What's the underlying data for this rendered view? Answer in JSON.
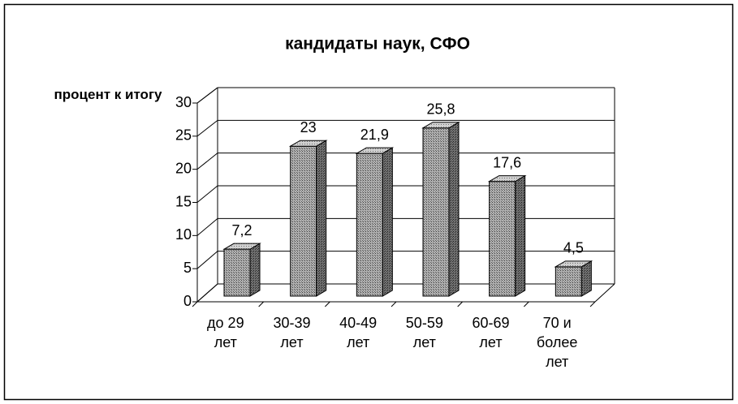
{
  "chart_data": {
    "type": "bar3d",
    "title": "кандидаты наук, СФО",
    "y_label": "процент к итогу",
    "categories": [
      "до 29 лет",
      "30-39 лет",
      "40-49 лет",
      "50-59 лет",
      "60-69 лет",
      "70 и более лет"
    ],
    "values": [
      7.2,
      23,
      21.9,
      25.8,
      17.6,
      4.5
    ],
    "value_labels": [
      "7,2",
      "23",
      "21,9",
      "25,8",
      "17,6",
      "4,5"
    ],
    "color": "#a0a0a0",
    "ylim": [
      0,
      30
    ],
    "yticks": [
      0,
      5,
      10,
      15,
      20,
      25,
      30
    ],
    "grid": true
  }
}
